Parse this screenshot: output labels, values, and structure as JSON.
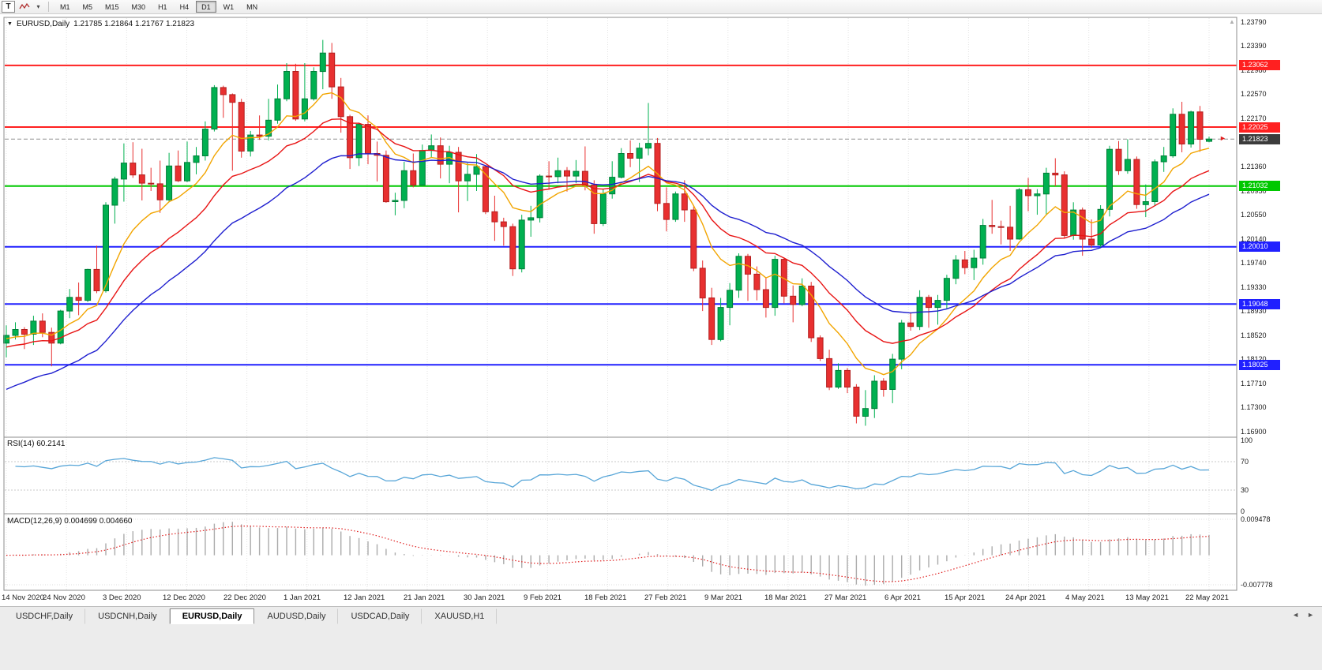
{
  "icons": {
    "dropdown": "▼",
    "caret": "▾",
    "scroll_up": "▲",
    "tab_left": "◄",
    "tab_right": "►",
    "price_arrow": "►"
  },
  "colors": {
    "bull": "#00B050",
    "bull_border": "#007E38",
    "bear": "#E83030",
    "bear_border": "#B21E1E",
    "grid": "#E3E3E3",
    "current_price_line": "#909090",
    "current_price_tag_bg": "#3C3C3C"
  },
  "toolbar": {
    "t_button_label": "T",
    "timeframes": [
      "M1",
      "M5",
      "M15",
      "M30",
      "H1",
      "H4",
      "D1",
      "W1",
      "MN"
    ],
    "active_timeframe": "D1"
  },
  "header": {
    "symbol_period": "EURUSD,Daily",
    "open": "1.21785",
    "high": "1.21864",
    "low": "1.21767",
    "close": "1.21823",
    "quote_line": "1.21785 1.21864 1.21767 1.21823"
  },
  "chart_data": {
    "type": "candlestick",
    "symbol": "EURUSD",
    "period": "Daily",
    "y_range": [
      1.16834,
      1.2387
    ],
    "y_axis_labels": [
      "1.23790",
      "1.23390",
      "1.22980",
      "1.22570",
      "1.22170",
      "1.21760",
      "1.21360",
      "1.20950",
      "1.20550",
      "1.20140",
      "1.19740",
      "1.19330",
      "1.18930",
      "1.18520",
      "1.18120",
      "1.17710",
      "1.17300",
      "1.16900"
    ],
    "x_labels": [
      "14 Nov 2020",
      "24 Nov 2020",
      "3 Dec 2020",
      "12 Dec 2020",
      "22 Dec 2020",
      "1 Jan 2021",
      "12 Jan 2021",
      "21 Jan 2021",
      "30 Jan 2021",
      "9 Feb 2021",
      "18 Feb 2021",
      "27 Feb 2021",
      "9 Mar 2021",
      "18 Mar 2021",
      "27 Mar 2021",
      "6 Apr 2021",
      "15 Apr 2021",
      "24 Apr 2021",
      "4 May 2021",
      "13 May 2021",
      "22 May 2021"
    ],
    "horizontal_lines": [
      {
        "price": 1.23062,
        "label": "1.23062",
        "color": "#FF2020",
        "kind": "resistance"
      },
      {
        "price": 1.22025,
        "label": "1.22025",
        "color": "#FF2020",
        "kind": "resistance"
      },
      {
        "price": 1.21032,
        "label": "1.21032",
        "color": "#00C800",
        "kind": "pivot"
      },
      {
        "price": 1.2001,
        "label": "1.20010",
        "color": "#2020FF",
        "kind": "support"
      },
      {
        "price": 1.19048,
        "label": "1.19048",
        "color": "#2020FF",
        "kind": "support"
      },
      {
        "price": 1.18025,
        "label": "1.18025",
        "color": "#2020FF",
        "kind": "support"
      }
    ],
    "last_price": 1.21823,
    "last_price_label": "1.21823",
    "moving_averages": [
      {
        "name": "ma-fast",
        "period": 9,
        "color": "#F2A500",
        "seed": 1.1845
      },
      {
        "name": "ma-mid",
        "period": 18,
        "color": "#E81414",
        "seed": 1.183
      },
      {
        "name": "ma-slow",
        "period": 30,
        "color": "#1F1FCF",
        "seed": 1.1755
      }
    ],
    "ohlc": [
      [
        1.1839,
        1.1869,
        1.1815,
        1.1852
      ],
      [
        1.1852,
        1.1874,
        1.1845,
        1.1862
      ],
      [
        1.1862,
        1.1866,
        1.1829,
        1.1854
      ],
      [
        1.1854,
        1.1885,
        1.1836,
        1.1876
      ],
      [
        1.1876,
        1.1889,
        1.1849,
        1.1857
      ],
      [
        1.1857,
        1.1865,
        1.18,
        1.1839
      ],
      [
        1.1839,
        1.1895,
        1.1837,
        1.1893
      ],
      [
        1.1893,
        1.193,
        1.1881,
        1.1916
      ],
      [
        1.1916,
        1.1941,
        1.1886,
        1.1911
      ],
      [
        1.1911,
        1.1964,
        1.1908,
        1.1963
      ],
      [
        1.1963,
        1.2003,
        1.1923,
        1.1927
      ],
      [
        1.1927,
        1.2076,
        1.1924,
        1.2071
      ],
      [
        1.2071,
        1.2119,
        1.204,
        1.2115
      ],
      [
        1.2115,
        1.2175,
        1.2077,
        1.2142
      ],
      [
        1.2142,
        1.2177,
        1.2117,
        1.2122
      ],
      [
        1.2122,
        1.2166,
        1.2079,
        1.2108
      ],
      [
        1.2108,
        1.2134,
        1.2095,
        1.2107
      ],
      [
        1.2107,
        1.2146,
        1.2058,
        1.208
      ],
      [
        1.208,
        1.2159,
        1.2076,
        1.2137
      ],
      [
        1.2137,
        1.2163,
        1.211,
        1.2112
      ],
      [
        1.2112,
        1.2178,
        1.211,
        1.2143
      ],
      [
        1.2143,
        1.2169,
        1.2123,
        1.2154
      ],
      [
        1.2154,
        1.2212,
        1.2146,
        1.2199
      ],
      [
        1.2199,
        1.2273,
        1.2195,
        1.2269
      ],
      [
        1.2269,
        1.2272,
        1.2218,
        1.2257
      ],
      [
        1.2257,
        1.2259,
        1.2129,
        1.2244
      ],
      [
        1.2244,
        1.225,
        1.2151,
        1.2162
      ],
      [
        1.2162,
        1.2196,
        1.2153,
        1.2189
      ],
      [
        1.2189,
        1.2222,
        1.2181,
        1.2187
      ],
      [
        1.2187,
        1.225,
        1.218,
        1.2214
      ],
      [
        1.2214,
        1.2274,
        1.2208,
        1.225
      ],
      [
        1.225,
        1.231,
        1.2246,
        1.2296
      ],
      [
        1.2296,
        1.2309,
        1.2213,
        1.2216
      ],
      [
        1.2216,
        1.231,
        1.2212,
        1.225
      ],
      [
        1.225,
        1.2303,
        1.2247,
        1.2296
      ],
      [
        1.2296,
        1.2349,
        1.2266,
        1.2327
      ],
      [
        1.2327,
        1.2344,
        1.225,
        1.227
      ],
      [
        1.227,
        1.2285,
        1.2193,
        1.222
      ],
      [
        1.222,
        1.2223,
        1.2132,
        1.2151
      ],
      [
        1.2151,
        1.221,
        1.2137,
        1.2207
      ],
      [
        1.2207,
        1.2222,
        1.214,
        1.2158
      ],
      [
        1.2158,
        1.2178,
        1.2111,
        1.2155
      ],
      [
        1.2155,
        1.2163,
        1.2075,
        1.2077
      ],
      [
        1.2077,
        1.2092,
        1.2054,
        1.2079
      ],
      [
        1.2079,
        1.2144,
        1.2066,
        1.2129
      ],
      [
        1.2129,
        1.2158,
        1.2101,
        1.2105
      ],
      [
        1.2105,
        1.2173,
        1.2103,
        1.2163
      ],
      [
        1.2163,
        1.219,
        1.2152,
        1.2171
      ],
      [
        1.2171,
        1.2185,
        1.2116,
        1.214
      ],
      [
        1.214,
        1.2171,
        1.2108,
        1.216
      ],
      [
        1.216,
        1.2169,
        1.2059,
        1.2112
      ],
      [
        1.2112,
        1.2142,
        1.2078,
        1.2123
      ],
      [
        1.2123,
        1.2157,
        1.2095,
        1.2136
      ],
      [
        1.2136,
        1.2137,
        1.2056,
        1.206
      ],
      [
        1.206,
        1.2087,
        1.2011,
        1.2043
      ],
      [
        1.2043,
        1.205,
        1.2003,
        1.2035
      ],
      [
        1.2035,
        1.204,
        1.1952,
        1.1964
      ],
      [
        1.1964,
        1.2055,
        1.1958,
        1.2046
      ],
      [
        1.2046,
        1.207,
        1.2018,
        1.205
      ],
      [
        1.205,
        1.2123,
        1.2042,
        1.212
      ],
      [
        1.212,
        1.2145,
        1.2097,
        1.2119
      ],
      [
        1.2119,
        1.2151,
        1.2108,
        1.2129
      ],
      [
        1.2129,
        1.2135,
        1.2094,
        1.212
      ],
      [
        1.212,
        1.2147,
        1.2108,
        1.2128
      ],
      [
        1.2128,
        1.217,
        1.2096,
        1.2105
      ],
      [
        1.2105,
        1.2113,
        1.2023,
        1.204
      ],
      [
        1.204,
        1.2098,
        1.2036,
        1.209
      ],
      [
        1.209,
        1.2145,
        1.2082,
        1.2118
      ],
      [
        1.2118,
        1.2167,
        1.2116,
        1.2158
      ],
      [
        1.2158,
        1.218,
        1.2135,
        1.215
      ],
      [
        1.215,
        1.2176,
        1.211,
        1.2167
      ],
      [
        1.2167,
        1.2243,
        1.2155,
        1.2175
      ],
      [
        1.2175,
        1.2184,
        1.2061,
        1.2074
      ],
      [
        1.2074,
        1.2101,
        1.2027,
        1.2047
      ],
      [
        1.2047,
        1.2094,
        1.2043,
        1.209
      ],
      [
        1.209,
        1.2113,
        1.2043,
        1.2063
      ],
      [
        1.2063,
        1.2069,
        1.196,
        1.1965
      ],
      [
        1.1965,
        1.1978,
        1.1893,
        1.1915
      ],
      [
        1.1915,
        1.1932,
        1.1836,
        1.1845
      ],
      [
        1.1845,
        1.1915,
        1.1842,
        1.1899
      ],
      [
        1.1899,
        1.194,
        1.1869,
        1.1928
      ],
      [
        1.1928,
        1.199,
        1.1915,
        1.1985
      ],
      [
        1.1985,
        1.1989,
        1.191,
        1.1955
      ],
      [
        1.1955,
        1.1968,
        1.1911,
        1.1929
      ],
      [
        1.1929,
        1.1949,
        1.1882,
        1.1899
      ],
      [
        1.1899,
        1.1986,
        1.1885,
        1.198
      ],
      [
        1.198,
        1.1983,
        1.1906,
        1.1918
      ],
      [
        1.1918,
        1.1936,
        1.1874,
        1.1904
      ],
      [
        1.1904,
        1.1948,
        1.1901,
        1.1935
      ],
      [
        1.1935,
        1.1942,
        1.1841,
        1.1848
      ],
      [
        1.1848,
        1.1852,
        1.1809,
        1.1813
      ],
      [
        1.1813,
        1.1828,
        1.176,
        1.1765
      ],
      [
        1.1765,
        1.1805,
        1.1762,
        1.1793
      ],
      [
        1.1793,
        1.1797,
        1.1755,
        1.1765
      ],
      [
        1.1765,
        1.177,
        1.1704,
        1.1716
      ],
      [
        1.1716,
        1.176,
        1.17,
        1.1729
      ],
      [
        1.1729,
        1.1785,
        1.1713,
        1.1775
      ],
      [
        1.1775,
        1.178,
        1.1749,
        1.1761
      ],
      [
        1.1761,
        1.1821,
        1.1738,
        1.1812
      ],
      [
        1.1812,
        1.1878,
        1.1795,
        1.1873
      ],
      [
        1.1873,
        1.1891,
        1.186,
        1.1867
      ],
      [
        1.1867,
        1.1928,
        1.1861,
        1.1916
      ],
      [
        1.1916,
        1.192,
        1.1865,
        1.1899
      ],
      [
        1.1899,
        1.192,
        1.187,
        1.1911
      ],
      [
        1.1911,
        1.1954,
        1.1896,
        1.1948
      ],
      [
        1.1948,
        1.1987,
        1.1938,
        1.1979
      ],
      [
        1.1979,
        1.1994,
        1.1955,
        1.1966
      ],
      [
        1.1966,
        1.1996,
        1.1945,
        1.1982
      ],
      [
        1.1982,
        1.2048,
        1.1971,
        1.2037
      ],
      [
        1.2037,
        1.208,
        1.2023,
        1.2035
      ],
      [
        1.2035,
        1.2045,
        1.2005,
        1.2034
      ],
      [
        1.2034,
        1.207,
        1.1994,
        1.2014
      ],
      [
        1.2014,
        1.21,
        1.2013,
        1.2097
      ],
      [
        1.2097,
        1.2117,
        1.2061,
        1.2087
      ],
      [
        1.2087,
        1.2098,
        1.2055,
        1.209
      ],
      [
        1.209,
        1.2134,
        1.2054,
        1.2125
      ],
      [
        1.2125,
        1.215,
        1.2103,
        1.2122
      ],
      [
        1.2122,
        1.2128,
        1.2015,
        1.202
      ],
      [
        1.202,
        1.2076,
        1.2013,
        1.2063
      ],
      [
        1.2063,
        1.2067,
        1.1986,
        1.2014
      ],
      [
        1.2014,
        1.2047,
        1.1999,
        1.2004
      ],
      [
        1.2004,
        1.2071,
        1.2,
        1.2064
      ],
      [
        1.2064,
        1.2171,
        1.2052,
        1.2165
      ],
      [
        1.2165,
        1.2179,
        1.2122,
        1.2129
      ],
      [
        1.2129,
        1.2182,
        1.2124,
        1.2148
      ],
      [
        1.2148,
        1.2153,
        1.2065,
        1.2072
      ],
      [
        1.2072,
        1.2106,
        1.2051,
        1.2077
      ],
      [
        1.2077,
        1.2148,
        1.207,
        1.2144
      ],
      [
        1.2144,
        1.2169,
        1.2127,
        1.2154
      ],
      [
        1.2154,
        1.2234,
        1.2151,
        1.2224
      ],
      [
        1.2224,
        1.2245,
        1.216,
        1.2174
      ],
      [
        1.2174,
        1.223,
        1.2168,
        1.2228
      ],
      [
        1.2228,
        1.2238,
        1.2161,
        1.2182
      ],
      [
        1.21785,
        1.21864,
        1.21767,
        1.21823
      ]
    ],
    "indicators": [
      {
        "type": "rsi",
        "label": "RSI(14) 60.2141",
        "period": 14,
        "value": 60.2141,
        "levels": [
          70,
          30
        ],
        "axis_labels": [
          "100",
          "70",
          "30",
          "0"
        ],
        "color": "#58A6D8"
      },
      {
        "type": "macd",
        "label": "MACD(12,26,9) 0.004699 0.004660",
        "fast": 12,
        "slow": 26,
        "signal_period": 9,
        "value": 0.004699,
        "signal_value": 0.00466,
        "axis_max": 0.009478,
        "axis_min": -0.007778,
        "axis_labels": [
          "0.009478",
          "-0.007778"
        ],
        "histogram_color": "#ABABAB",
        "signal_color": "#E02020"
      }
    ]
  },
  "tab_bar": {
    "tabs": [
      "USDCHF,Daily",
      "USDCNH,Daily",
      "EURUSD,Daily",
      "AUDUSD,Daily",
      "USDCAD,Daily",
      "XAUUSD,H1"
    ],
    "active_tab": "EURUSD,Daily"
  }
}
